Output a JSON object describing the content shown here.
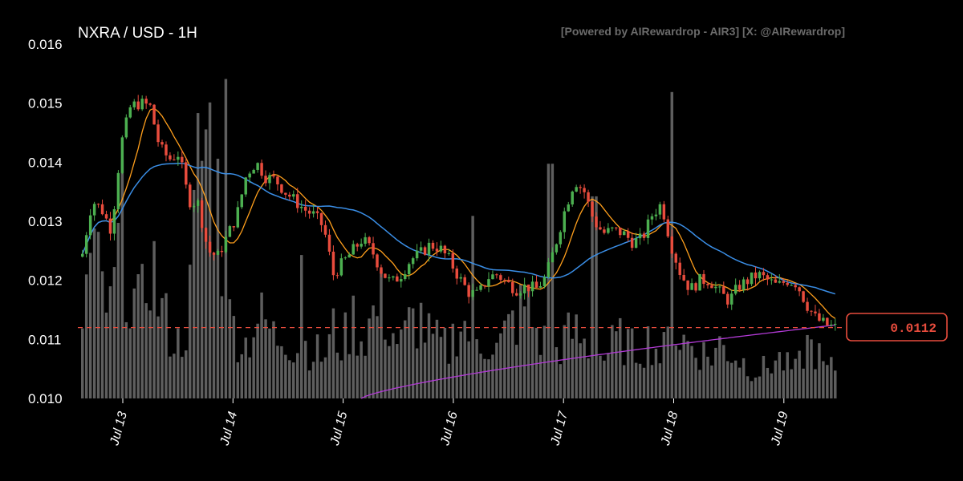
{
  "chart_data": {
    "type": "candlestick",
    "title": "NXRA / USD - 1H",
    "credit": "[Powered by AIRewardrop - AIR3] [X: @AIRewardrop]",
    "y_ticks": [
      "0.016",
      "0.015",
      "0.014",
      "0.013",
      "0.012",
      "0.011",
      "0.010"
    ],
    "ylim": [
      0.01,
      0.016
    ],
    "x_ticks": [
      "Jul 13",
      "Jul 14",
      "Jul 15",
      "Jul 16",
      "Jul 17",
      "Jul 18",
      "Jul 19"
    ],
    "current_price": "0.0112",
    "current_price_value": 0.0112,
    "grid": false,
    "colors": {
      "background": "#000000",
      "up": "#4caf50",
      "down": "#e84c3d",
      "volume": "#6e6e6e",
      "ma_fast": "#ff9f1c",
      "ma_mid": "#3a8ee6",
      "ma_slow": "#b23ad6",
      "price_line": "#e84c3d"
    },
    "close_path": [
      [
        0,
        0.01245
      ],
      [
        1,
        0.01335
      ],
      [
        2,
        0.0132
      ],
      [
        3,
        0.01285
      ],
      [
        4,
        0.0143
      ],
      [
        5,
        0.01495
      ],
      [
        6,
        0.015
      ],
      [
        7,
        0.01495
      ],
      [
        8,
        0.01425
      ],
      [
        9,
        0.01405
      ],
      [
        10,
        0.01415
      ],
      [
        11,
        0.01335
      ],
      [
        12,
        0.0133
      ],
      [
        13,
        0.0125
      ],
      [
        14,
        0.0124
      ],
      [
        15,
        0.01275
      ],
      [
        16,
        0.0131
      ],
      [
        17,
        0.0138
      ],
      [
        18,
        0.014
      ],
      [
        19,
        0.01375
      ],
      [
        20,
        0.0137
      ],
      [
        21,
        0.0135
      ],
      [
        22,
        0.01335
      ],
      [
        23,
        0.0132
      ],
      [
        24,
        0.0131
      ],
      [
        25,
        0.0129
      ],
      [
        26,
        0.0121
      ],
      [
        27,
        0.0123
      ],
      [
        28,
        0.0125
      ],
      [
        29,
        0.0127
      ],
      [
        30,
        0.0125
      ],
      [
        31,
        0.01215
      ],
      [
        32,
        0.01195
      ],
      [
        33,
        0.0121
      ],
      [
        34,
        0.01235
      ],
      [
        35,
        0.01245
      ],
      [
        36,
        0.0126
      ],
      [
        37,
        0.01255
      ],
      [
        38,
        0.01235
      ],
      [
        39,
        0.01205
      ],
      [
        40,
        0.0118
      ],
      [
        41,
        0.01175
      ],
      [
        42,
        0.01205
      ],
      [
        43,
        0.0121
      ],
      [
        44,
        0.01195
      ],
      [
        45,
        0.01185
      ],
      [
        46,
        0.0119
      ],
      [
        47,
        0.01185
      ],
      [
        48,
        0.01205
      ],
      [
        49,
        0.0126
      ],
      [
        50,
        0.0132
      ],
      [
        51,
        0.0137
      ],
      [
        52,
        0.0135
      ],
      [
        53,
        0.013
      ],
      [
        54,
        0.0128
      ],
      [
        55,
        0.01285
      ],
      [
        56,
        0.0128
      ],
      [
        57,
        0.01265
      ],
      [
        58,
        0.0127
      ],
      [
        59,
        0.0131
      ],
      [
        60,
        0.0133
      ],
      [
        61,
        0.0126
      ],
      [
        62,
        0.0121
      ],
      [
        63,
        0.01185
      ],
      [
        64,
        0.012
      ],
      [
        65,
        0.012
      ],
      [
        66,
        0.0118
      ],
      [
        67,
        0.01165
      ],
      [
        68,
        0.0119
      ],
      [
        69,
        0.012
      ],
      [
        70,
        0.0121
      ],
      [
        71,
        0.012
      ],
      [
        72,
        0.0119
      ],
      [
        73,
        0.012
      ],
      [
        74,
        0.01195
      ],
      [
        75,
        0.0116
      ],
      [
        76,
        0.01135
      ],
      [
        77,
        0.01125
      ],
      [
        78,
        0.0112
      ]
    ],
    "volume_path": [
      [
        0,
        0.3
      ],
      [
        1,
        0.55
      ],
      [
        2,
        0.4
      ],
      [
        3,
        0.3
      ],
      [
        4,
        0.65
      ],
      [
        5,
        0.4
      ],
      [
        6,
        0.3
      ],
      [
        7,
        0.55
      ],
      [
        8,
        0.35
      ],
      [
        9,
        0.25
      ],
      [
        10,
        0.2
      ],
      [
        11,
        0.3
      ],
      [
        12,
        0.85
      ],
      [
        13,
        1.0
      ],
      [
        14,
        0.75
      ],
      [
        15,
        0.3
      ],
      [
        16,
        0.25
      ],
      [
        17,
        0.2
      ],
      [
        18,
        0.3
      ],
      [
        19,
        0.28
      ],
      [
        20,
        0.22
      ],
      [
        21,
        0.25
      ],
      [
        22,
        0.18
      ],
      [
        23,
        0.2
      ],
      [
        24,
        0.18
      ],
      [
        25,
        0.15
      ],
      [
        26,
        0.25
      ],
      [
        27,
        0.2
      ],
      [
        28,
        0.3
      ],
      [
        29,
        0.22
      ],
      [
        30,
        0.3
      ],
      [
        31,
        0.35
      ],
      [
        32,
        0.25
      ],
      [
        33,
        0.2
      ],
      [
        34,
        0.28
      ],
      [
        35,
        0.3
      ],
      [
        36,
        0.22
      ],
      [
        37,
        0.2
      ],
      [
        38,
        0.18
      ],
      [
        39,
        0.3
      ],
      [
        40,
        0.25
      ],
      [
        41,
        0.2
      ],
      [
        42,
        0.22
      ],
      [
        43,
        0.18
      ],
      [
        44,
        0.25
      ],
      [
        45,
        0.3
      ],
      [
        46,
        0.35
      ],
      [
        47,
        0.25
      ],
      [
        48,
        0.2
      ],
      [
        49,
        0.18
      ],
      [
        50,
        0.22
      ],
      [
        51,
        0.25
      ],
      [
        52,
        0.2
      ],
      [
        53,
        0.18
      ],
      [
        54,
        0.15
      ],
      [
        55,
        0.2
      ],
      [
        56,
        0.22
      ],
      [
        57,
        0.18
      ],
      [
        58,
        0.2
      ],
      [
        59,
        0.22
      ],
      [
        60,
        0.15
      ],
      [
        61,
        0.25
      ],
      [
        62,
        0.22
      ],
      [
        63,
        0.2
      ],
      [
        64,
        0.18
      ],
      [
        65,
        0.15
      ],
      [
        66,
        0.2
      ],
      [
        67,
        0.18
      ],
      [
        68,
        0.15
      ],
      [
        69,
        0.12
      ],
      [
        70,
        0.1
      ],
      [
        71,
        0.12
      ],
      [
        72,
        0.15
      ],
      [
        73,
        0.12
      ],
      [
        74,
        0.1
      ],
      [
        75,
        0.2
      ],
      [
        76,
        0.18
      ],
      [
        77,
        0.1
      ],
      [
        78,
        0.12
      ]
    ],
    "volume_spikes": [
      [
        14.8,
        0.98
      ],
      [
        48.5,
        0.72
      ],
      [
        61.2,
        0.94
      ],
      [
        22.6,
        0.44
      ],
      [
        40.5,
        0.56
      ],
      [
        53.0,
        0.62
      ]
    ]
  }
}
